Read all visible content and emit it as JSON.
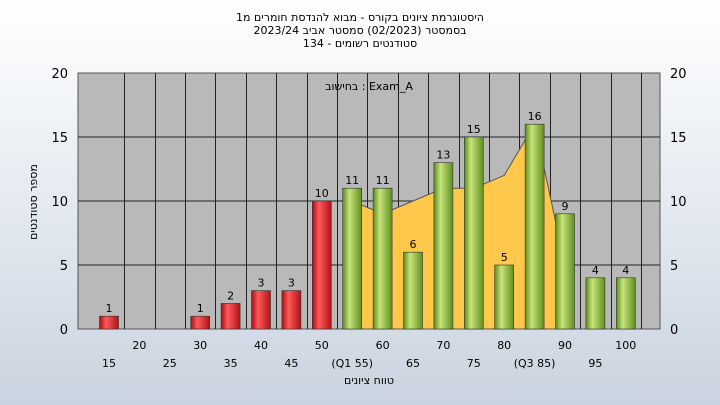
{
  "header": {
    "line1": "היסטוגרמת ציונים בקורס - מבוא להנדסת חומרים מ1",
    "line2": "בסמסטר  (02/2023)  סמסטר אביב 2023/24",
    "line3": "134 - סטודנטים רשומים"
  },
  "chart_data": {
    "type": "bar",
    "annotation": "בחישוב : Exam_A",
    "xlabel": "טווח ציונים",
    "ylabel": "מספר סטודנטים",
    "ylim": [
      0,
      20
    ],
    "yticks": [
      0,
      5,
      10,
      15,
      20
    ],
    "grid": true,
    "bins": [
      15,
      20,
      25,
      30,
      35,
      40,
      45,
      50,
      55,
      60,
      65,
      70,
      75,
      80,
      85,
      90,
      95,
      100
    ],
    "bin_labels": [
      "15",
      "20",
      "25",
      "30",
      "35",
      "40",
      "45",
      "50",
      "(Q1 55)",
      "60",
      "65",
      "70",
      "75",
      "80",
      "(Q3 85)",
      "90",
      "95",
      "100"
    ],
    "values": [
      1,
      0,
      0,
      1,
      2,
      3,
      3,
      10,
      11,
      11,
      6,
      13,
      15,
      5,
      16,
      9,
      4,
      4
    ],
    "value_labels": [
      "1",
      "",
      "",
      "1",
      "2",
      "3",
      "3",
      "10",
      "11",
      "11",
      "6",
      "13",
      "15",
      "5",
      "16",
      "9",
      "4",
      "4"
    ],
    "bar_colors": [
      "#e8262a",
      "",
      "",
      "#e8262a",
      "#e8262a",
      "#e8262a",
      "#e8262a",
      "#e8262a",
      "#8fbf3a",
      "#8fbf3a",
      "#8fbf3a",
      "#8fbf3a",
      "#8fbf3a",
      "#8fbf3a",
      "#8fbf3a",
      "#8fbf3a",
      "#8fbf3a",
      "#8fbf3a"
    ],
    "distribution_area": {
      "x": [
        55,
        60,
        65,
        70,
        75,
        80,
        85,
        90
      ],
      "y": [
        10,
        9,
        10,
        11,
        11,
        12,
        16,
        5
      ]
    },
    "colors": {
      "fail": "#e8262a",
      "pass": "#8fbf3a",
      "area": "#ffc84a",
      "plot_bg": "#b9b9b9"
    }
  }
}
